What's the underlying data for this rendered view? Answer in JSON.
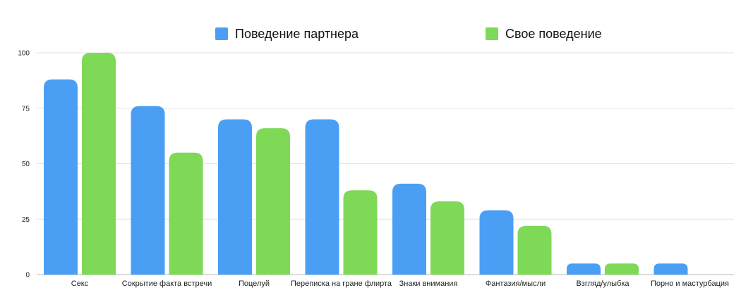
{
  "chart_data": {
    "type": "bar",
    "title": "",
    "xlabel": "",
    "ylabel": "",
    "ylim": [
      0,
      100
    ],
    "yticks": [
      0,
      25,
      50,
      75,
      100
    ],
    "grid": true,
    "legend_position": "top-center",
    "categories": [
      "Секс",
      "Сокрытие факта встречи",
      "Поцелуй",
      "Переписка на гране флирта",
      "Знаки внимания",
      "Фантазия/мысли",
      "Взгляд/улыбка",
      "Порно и мастурбация"
    ],
    "series": [
      {
        "name": "Поведение партнера",
        "color": "#4a9ff5",
        "values": [
          88,
          76,
          70,
          70,
          41,
          29,
          5,
          5
        ]
      },
      {
        "name": "Свое поведение",
        "color": "#7ed957",
        "values": [
          100,
          55,
          66,
          38,
          33,
          22,
          5,
          0
        ]
      }
    ]
  }
}
